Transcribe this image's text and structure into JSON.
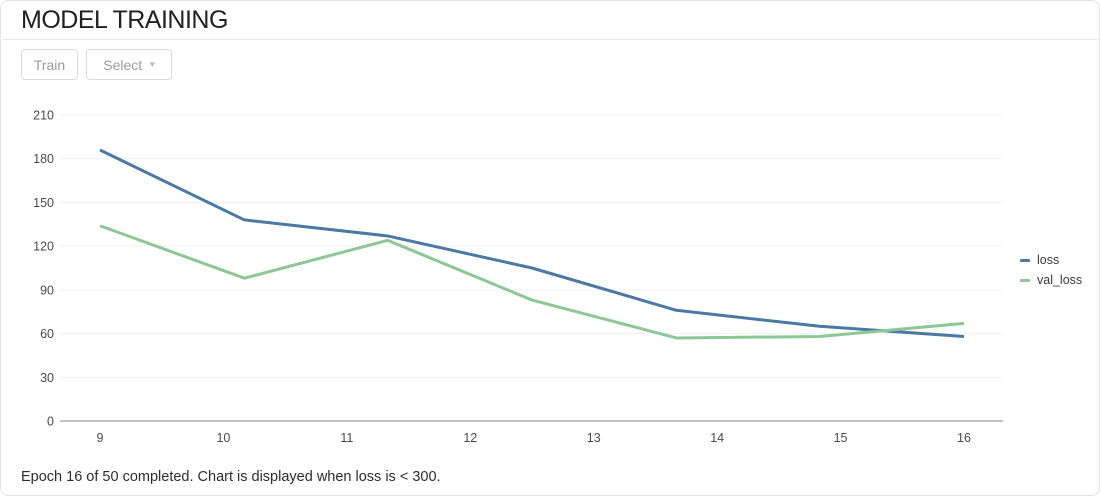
{
  "header": {
    "title": "MODEL TRAINING"
  },
  "toolbar": {
    "train_button": "Train",
    "select_button": "Select",
    "select_caret_icon": "▾"
  },
  "chart_data": {
    "type": "line",
    "x": [
      9,
      10.17,
      11.33,
      12.5,
      13.67,
      14.83,
      16
    ],
    "series": [
      {
        "name": "loss",
        "color": "#4a79a4",
        "values": [
          186,
          138,
          127,
          105,
          76,
          65,
          58
        ]
      },
      {
        "name": "val_loss",
        "color": "#8cc896",
        "values": [
          134,
          98,
          124,
          83,
          57,
          58,
          67
        ]
      }
    ],
    "xticks": [
      9,
      10,
      11,
      12,
      13,
      14,
      15,
      16
    ],
    "yticks": [
      0,
      30,
      60,
      90,
      120,
      150,
      180,
      210
    ],
    "xlim": [
      8.68,
      16.32
    ],
    "ylim": [
      0,
      210
    ],
    "grid": true,
    "legend_position": "right"
  },
  "colors": {
    "grid_line": "#f1f1f1",
    "axis_line": "#c3c3c3",
    "tick_text": "#4a4a4a"
  },
  "footer": {
    "status": "Epoch 16 of 50 completed. Chart is displayed when loss is < 300."
  }
}
